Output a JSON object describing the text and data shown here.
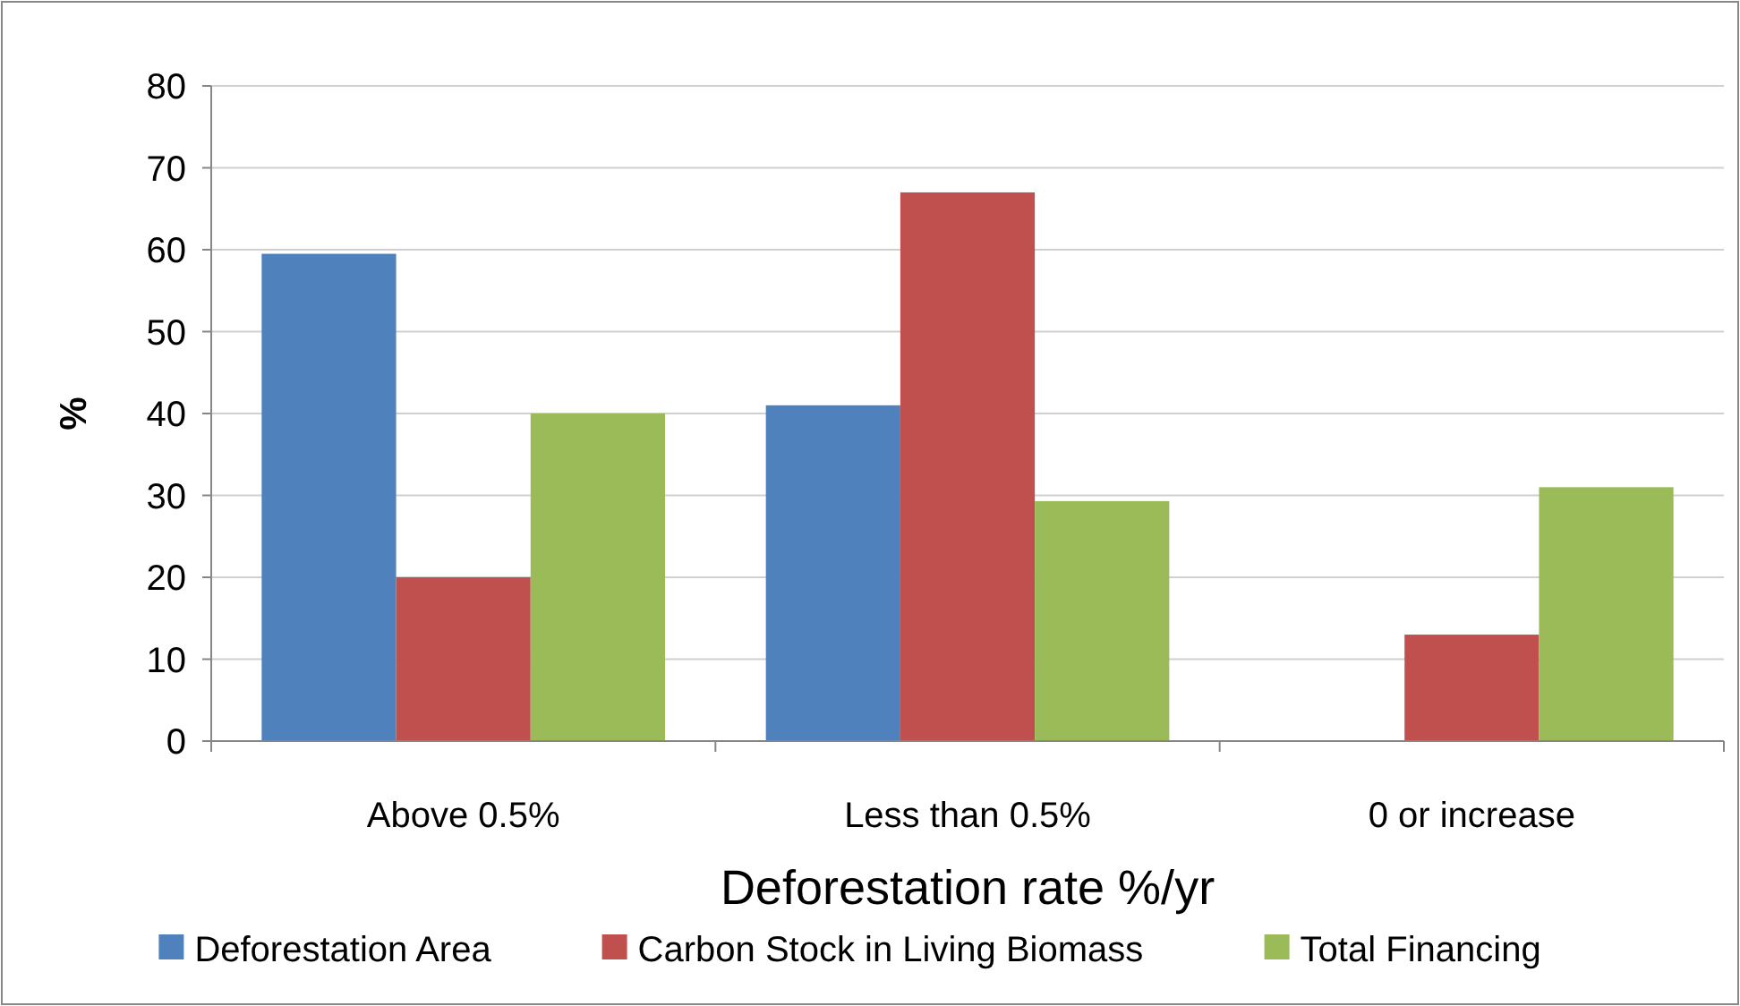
{
  "chart_data": {
    "type": "bar",
    "xlabel": "Deforestation rate %/yr",
    "ylabel": "%",
    "categories": [
      "Above 0.5%",
      "Less than 0.5%",
      "0 or increase"
    ],
    "series": [
      {
        "name": "Deforestation Area",
        "color": "#4f81bd",
        "values": [
          59.5,
          41,
          0
        ]
      },
      {
        "name": "Carbon Stock in Living Biomass",
        "color": "#c0504d",
        "values": [
          20,
          67,
          13
        ]
      },
      {
        "name": "Total Financing",
        "color": "#9bbb59",
        "values": [
          40,
          29.3,
          31
        ]
      }
    ],
    "ylim": [
      0,
      80
    ],
    "yticks": [
      0,
      10,
      20,
      30,
      40,
      50,
      60,
      70,
      80
    ],
    "grid": "y",
    "legend": "bottom"
  }
}
